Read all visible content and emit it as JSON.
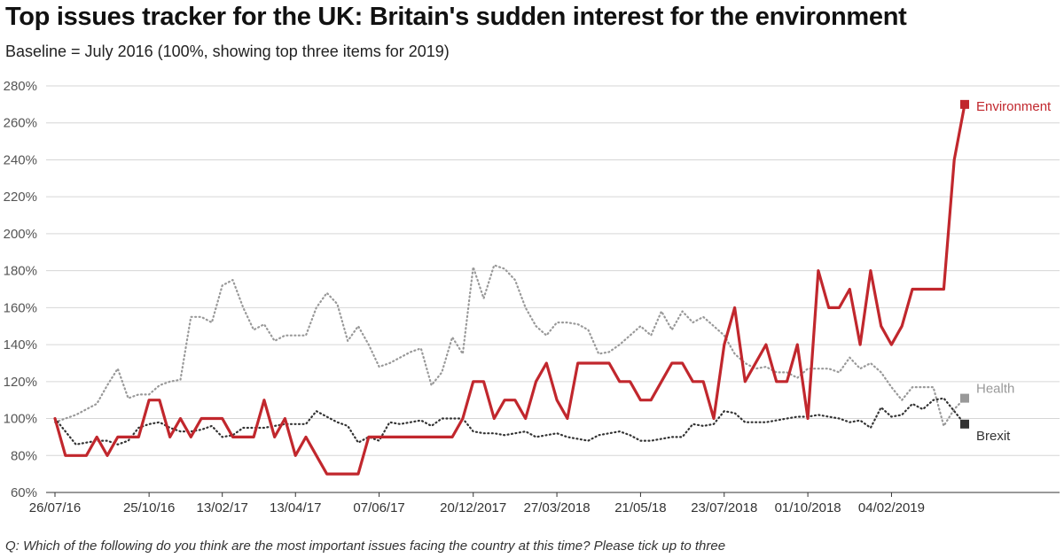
{
  "chart_data": {
    "type": "line",
    "title": "Top issues tracker for the UK: Britain's sudden interest for the environment",
    "subtitle": "Baseline = July 2016 (100%, showing top three items for 2019)",
    "footnote": "Q: Which of the following do you think are the most important issues facing the country at this time? Please tick up to three",
    "xlabel": "",
    "ylabel": "",
    "ylim": [
      60,
      280
    ],
    "y_ticks": [
      60,
      80,
      100,
      120,
      140,
      160,
      180,
      200,
      220,
      240,
      260,
      280
    ],
    "y_tick_suffix": "%",
    "x_tick_labels": [
      "26/07/16",
      "25/10/16",
      "13/02/17",
      "13/04/17",
      "07/06/17",
      "20/12/2017",
      "27/03/2018",
      "21/05/18",
      "23/07/2018",
      "01/10/2018",
      "04/02/2019"
    ],
    "x_tick_positions": [
      0,
      9,
      16,
      23,
      31,
      40,
      48,
      56,
      64,
      72,
      80
    ],
    "n_points": 88,
    "series": [
      {
        "name": "Health",
        "color": "#999999",
        "style": "dotted",
        "marker": "square",
        "values": [
          98,
          100,
          102,
          105,
          108,
          118,
          127,
          111,
          113,
          113,
          118,
          120,
          121,
          155,
          155,
          152,
          172,
          175,
          160,
          148,
          151,
          142,
          145,
          145,
          145,
          160,
          168,
          162,
          142,
          150,
          140,
          128,
          130,
          133,
          136,
          138,
          118,
          125,
          144,
          135,
          182,
          165,
          183,
          181,
          175,
          160,
          150,
          145,
          152,
          152,
          151,
          148,
          135,
          136,
          140,
          145,
          150,
          145,
          158,
          148,
          158,
          152,
          155,
          150,
          145,
          135,
          130,
          127,
          128,
          125,
          125,
          122,
          127,
          127,
          127,
          125,
          133,
          127,
          130,
          125,
          117,
          110,
          117,
          117,
          117,
          96,
          105,
          111
        ]
      },
      {
        "name": "Brexit",
        "color": "#333333",
        "style": "dotted",
        "marker": "square",
        "values": [
          100,
          93,
          86,
          87,
          88,
          88,
          86,
          88,
          95,
          97,
          98,
          95,
          93,
          93,
          94,
          96,
          90,
          91,
          95,
          95,
          95,
          96,
          97,
          97,
          97,
          104,
          101,
          98,
          96,
          87,
          90,
          88,
          98,
          97,
          98,
          99,
          96,
          100,
          100,
          100,
          93,
          92,
          92,
          91,
          92,
          93,
          90,
          91,
          92,
          90,
          89,
          88,
          91,
          92,
          93,
          91,
          88,
          88,
          89,
          90,
          90,
          97,
          96,
          97,
          104,
          103,
          98,
          98,
          98,
          99,
          100,
          101,
          101,
          102,
          101,
          100,
          98,
          99,
          95,
          106,
          101,
          102,
          108,
          105,
          110,
          111,
          104,
          97
        ]
      },
      {
        "name": "Environment",
        "color": "#c1272d",
        "style": "solid",
        "marker": "square",
        "values": [
          100,
          80,
          80,
          80,
          90,
          80,
          90,
          90,
          90,
          110,
          110,
          90,
          100,
          90,
          100,
          100,
          100,
          90,
          90,
          90,
          110,
          90,
          100,
          80,
          90,
          80,
          70,
          70,
          70,
          70,
          90,
          90,
          90,
          90,
          90,
          90,
          90,
          90,
          90,
          100,
          120,
          120,
          100,
          110,
          110,
          100,
          120,
          130,
          110,
          100,
          130,
          130,
          130,
          130,
          120,
          120,
          110,
          110,
          120,
          130,
          130,
          120,
          120,
          100,
          140,
          160,
          120,
          130,
          140,
          120,
          120,
          140,
          100,
          180,
          160,
          160,
          170,
          140,
          180,
          150,
          140,
          150,
          170,
          170,
          170,
          170,
          240,
          270
        ]
      }
    ]
  }
}
